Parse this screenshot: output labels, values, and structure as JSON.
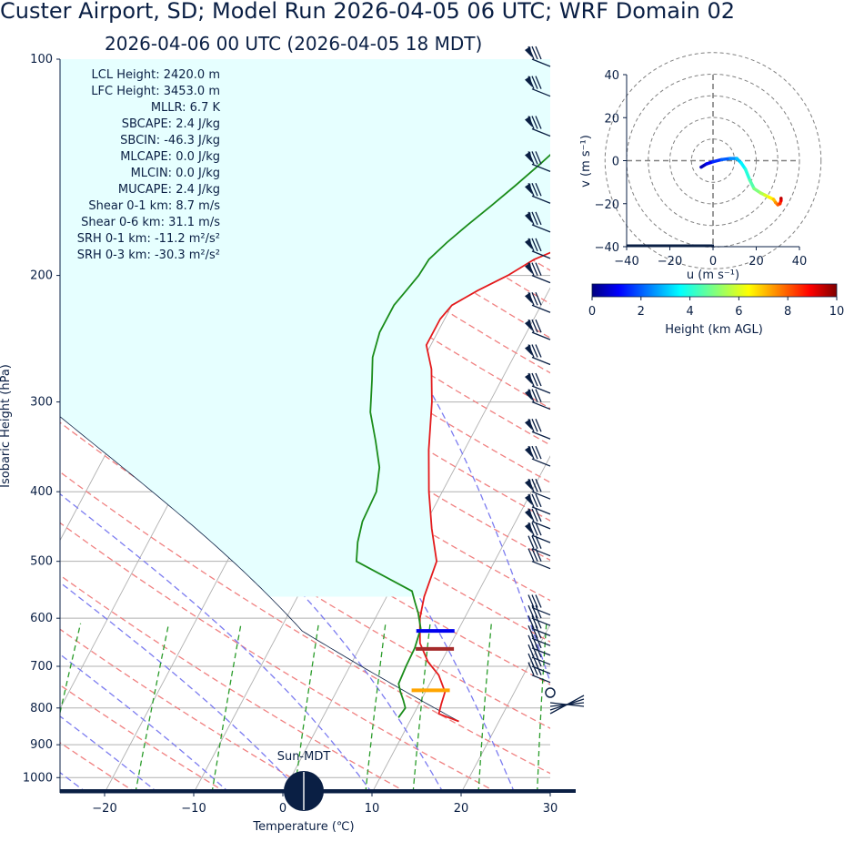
{
  "title": "Custer Airport, SD; Model Run 2026-04-05 06 UTC; WRF Domain 02",
  "subtitle": "2026-04-06 00 UTC  (2026-04-05 18 MDT)",
  "chart_data": [
    {
      "type": "line",
      "name": "skew-t",
      "xlabel": "Temperature (℃)",
      "ylabel": "Isobaric Height (hPa)",
      "xlim": [
        -25,
        30
      ],
      "ylim": [
        1050,
        100
      ],
      "y_scale": "log",
      "x_ticks": [
        "−20",
        "−10",
        "0",
        "10",
        "20",
        "30"
      ],
      "y_ticks": [
        "100",
        "200",
        "300",
        "400",
        "500",
        "600",
        "700",
        "800",
        "900",
        "1000"
      ],
      "series": [
        {
          "color": "#e41a1c",
          "points": [
            [
              15.5,
              835
            ],
            [
              12.8,
              815
            ],
            [
              12.5,
              790
            ],
            [
              12.2,
              760
            ],
            [
              10.5,
              720
            ],
            [
              8.5,
              690
            ],
            [
              6.5,
              650
            ],
            [
              5,
              600
            ],
            [
              4.2,
              560
            ],
            [
              3.5,
              500
            ],
            [
              1,
              450
            ],
            [
              -1.5,
              400
            ],
            [
              -4,
              350
            ],
            [
              -6.5,
              300
            ],
            [
              -8.5,
              270
            ],
            [
              -10.5,
              250
            ],
            [
              -10.5,
              230
            ],
            [
              -10,
              220
            ],
            [
              -8,
              210
            ],
            [
              -5.5,
              200
            ],
            [
              -3.5,
              190
            ],
            [
              0,
              180
            ],
            [
              5,
              170
            ],
            [
              10,
              160
            ],
            [
              15,
              150
            ],
            [
              16,
              140
            ],
            [
              18,
              130
            ],
            [
              20,
              120
            ],
            [
              21.5,
              110
            ],
            [
              22.5,
              100
            ]
          ]
        },
        {
          "color": "#1a8c1a",
          "points": [
            [
              8.5,
              825
            ],
            [
              8.7,
              800
            ],
            [
              8,
              780
            ],
            [
              7.2,
              760
            ],
            [
              6.5,
              740
            ],
            [
              6.3,
              700
            ],
            [
              6.2,
              660
            ],
            [
              5.7,
              620
            ],
            [
              4.5,
              590
            ],
            [
              3.5,
              570
            ],
            [
              2.5,
              550
            ],
            [
              -5.5,
              500
            ],
            [
              -6.5,
              470
            ],
            [
              -7.2,
              440
            ],
            [
              -7.4,
              400
            ],
            [
              -8.5,
              370
            ],
            [
              -10.5,
              340
            ],
            [
              -12.8,
              310
            ],
            [
              -14.5,
              280
            ],
            [
              -15.8,
              260
            ],
            [
              -16.5,
              240
            ],
            [
              -16.5,
              220
            ],
            [
              -16,
              210
            ],
            [
              -15.5,
              200
            ],
            [
              -15.3,
              190
            ],
            [
              -14.3,
              180
            ],
            [
              -13,
              170
            ],
            [
              -11.5,
              160
            ],
            [
              -10,
              150
            ],
            [
              -8.5,
              140
            ],
            [
              -7,
              130
            ],
            [
              -5.5,
              120
            ],
            [
              -4,
              110
            ],
            [
              -2,
              100
            ]
          ]
        }
      ],
      "parcel_color": "#0a1f44",
      "cape_fill": "#e6ffff",
      "levels": [
        {
          "color": "#0000ee",
          "t": 7.5,
          "p": 625
        },
        {
          "color": "#a52a2a",
          "t": 8.5,
          "p": 662
        },
        {
          "color": "#ffa500",
          "t": 10.5,
          "p": 756
        }
      ],
      "indices": [
        "LCL Height: 2420.0 m",
        "LFC Height: 3453.0 m",
        "MLLR: 6.7 K",
        "SBCAPE: 2.4 J/kg",
        "SBCIN: -46.3 J/kg",
        "MLCAPE: 0.0 J/kg",
        "MLCIN: 0.0 J/kg",
        "MUCAPE: 2.4 J/kg",
        "Shear 0-1 km: 8.7 m/s",
        "Shear 0-6 km: 31.1 m/s",
        "SRH 0-1 km: -11.2 m²/s²",
        "SRH 0-3 km: -30.3 m²/s²"
      ],
      "sun_label": "Sun-MDT"
    },
    {
      "type": "scatter",
      "name": "hodograph",
      "xlabel": "u (m s⁻¹)",
      "ylabel": "v (m s⁻¹)",
      "xlim": [
        -40,
        40
      ],
      "ylim": [
        -40,
        40
      ],
      "x_ticks": [
        "−40",
        "−20",
        "0",
        "20",
        "40"
      ],
      "y_ticks": [
        "40",
        "20",
        "0",
        "−20",
        "−40"
      ],
      "colorbar": {
        "label": "Height (km AGL)",
        "range": [
          0,
          10
        ],
        "ticks": [
          "0",
          "2",
          "4",
          "6",
          "8",
          "10"
        ]
      },
      "points": [
        [
          -5.5,
          -3,
          0.5
        ],
        [
          -3,
          -1.5,
          1.0
        ],
        [
          0,
          -0.5,
          1.5
        ],
        [
          4,
          0.5,
          2.0
        ],
        [
          8,
          1,
          2.5
        ],
        [
          11,
          1,
          3.0
        ],
        [
          13,
          -1,
          3.5
        ],
        [
          15,
          -4,
          4.0
        ],
        [
          17,
          -9,
          4.5
        ],
        [
          19,
          -13,
          5.0
        ],
        [
          22,
          -15,
          5.5
        ],
        [
          24,
          -16,
          6.0
        ],
        [
          26,
          -17,
          6.5
        ],
        [
          28,
          -18,
          7.0
        ],
        [
          29,
          -19.5,
          7.5
        ],
        [
          30,
          -20.5,
          8.0
        ],
        [
          31,
          -20,
          8.5
        ],
        [
          31.5,
          -18.5,
          9.0
        ],
        [
          31.5,
          -17.5,
          9.5
        ]
      ]
    }
  ]
}
